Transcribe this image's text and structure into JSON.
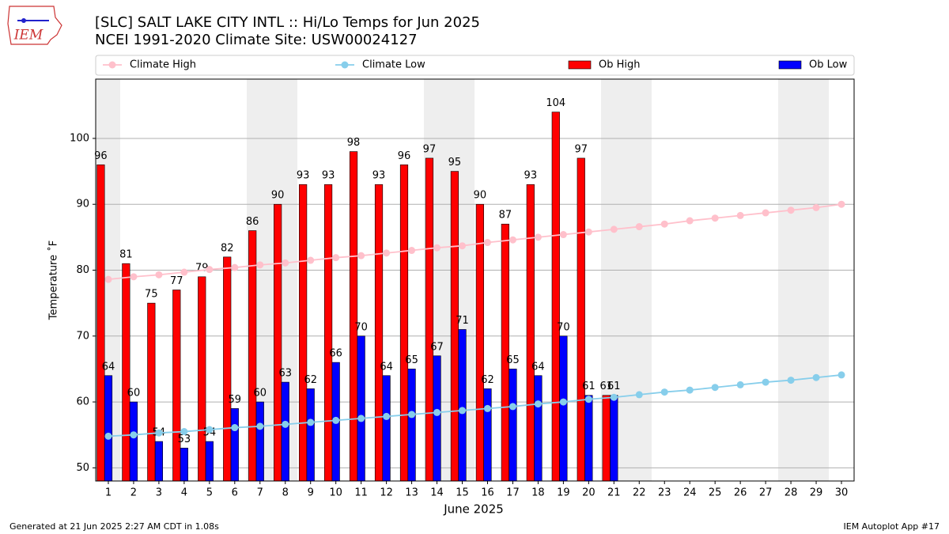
{
  "chart_data": {
    "type": "bar",
    "title": "[SLC] SALT LAKE CITY INTL :: Hi/Lo Temps for Jun 2025",
    "subtitle": "NCEI 1991-2020 Climate Site: USW00024127",
    "x_label": "June 2025",
    "y_label": "Temperature ˚F",
    "logo_text": "IEM",
    "footer_left": "Generated at 21 Jun 2025 2:27 AM CDT in 1.08s",
    "footer_right": "IEM Autoplot App #17",
    "categories": [
      "1",
      "2",
      "3",
      "4",
      "5",
      "6",
      "7",
      "8",
      "9",
      "10",
      "11",
      "12",
      "13",
      "14",
      "15",
      "16",
      "17",
      "18",
      "19",
      "20",
      "21",
      "22",
      "23",
      "24",
      "25",
      "26",
      "27",
      "28",
      "29",
      "30"
    ],
    "ylim": [
      48,
      109
    ],
    "yticks": [
      50,
      60,
      70,
      80,
      90,
      100
    ],
    "grid": true,
    "legend": "top",
    "series": [
      {
        "name": "Climate High",
        "type": "line",
        "color": "#ffc0cb",
        "values": [
          78.6,
          79.0,
          79.3,
          79.7,
          80.1,
          80.4,
          80.8,
          81.1,
          81.5,
          81.9,
          82.2,
          82.6,
          83.0,
          83.4,
          83.7,
          84.2,
          84.6,
          85.0,
          85.4,
          85.8,
          86.2,
          86.6,
          87.0,
          87.5,
          87.9,
          88.3,
          88.7,
          89.1,
          89.5,
          90.0
        ]
      },
      {
        "name": "Climate Low",
        "type": "line",
        "color": "#87ceeb",
        "values": [
          54.8,
          55.0,
          55.3,
          55.5,
          55.8,
          56.1,
          56.3,
          56.6,
          56.9,
          57.2,
          57.5,
          57.8,
          58.1,
          58.4,
          58.7,
          59.0,
          59.3,
          59.7,
          60.0,
          60.4,
          60.7,
          61.1,
          61.5,
          61.8,
          62.2,
          62.6,
          63.0,
          63.3,
          63.7,
          64.1
        ]
      },
      {
        "name": "Ob High",
        "type": "bar",
        "color": "#ff0000",
        "values": [
          96,
          81,
          75,
          77,
          79,
          82,
          86,
          90,
          93,
          93,
          98,
          93,
          96,
          97,
          95,
          90,
          87,
          93,
          104,
          97,
          61,
          null,
          null,
          null,
          null,
          null,
          null,
          null,
          null,
          null
        ]
      },
      {
        "name": "Ob Low",
        "type": "bar",
        "color": "#0000ff",
        "values": [
          64,
          60,
          54,
          53,
          54,
          59,
          60,
          63,
          62,
          66,
          70,
          64,
          65,
          67,
          71,
          62,
          65,
          64,
          70,
          61,
          61,
          null,
          null,
          null,
          null,
          null,
          null,
          null,
          null,
          null
        ]
      }
    ]
  }
}
